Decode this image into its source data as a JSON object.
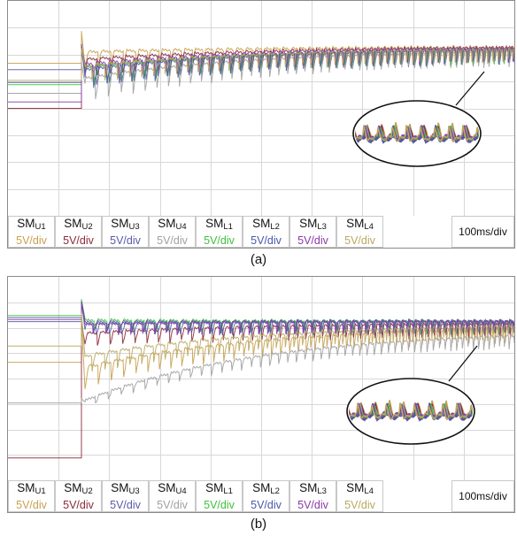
{
  "chart_data": [
    {
      "type": "line",
      "caption": "(a)",
      "timebase": "100ms/div",
      "series": [
        {
          "name": "SM_U1",
          "name_main": "SM",
          "name_sub": "U1",
          "scale": "5V/div",
          "color": "#c8a050",
          "initial_level": 0.71,
          "peak": 0.86,
          "early_level": 0.74,
          "early_swing": 0.09,
          "final_level": 0.765,
          "final_swing": 0.085
        },
        {
          "name": "SM_U2",
          "name_main": "SM",
          "name_sub": "U2",
          "scale": "5V/div",
          "color": "#8b2a3a",
          "initial_level": 0.5,
          "peak": 0.8,
          "early_level": 0.7,
          "early_swing": 0.11,
          "final_level": 0.765,
          "final_swing": 0.09
        },
        {
          "name": "SM_U3",
          "name_main": "SM",
          "name_sub": "U3",
          "scale": "5V/div",
          "color": "#5a5aa8",
          "initial_level": 0.68,
          "peak": 0.79,
          "early_level": 0.66,
          "early_swing": 0.13,
          "final_level": 0.76,
          "final_swing": 0.09
        },
        {
          "name": "SM_U4",
          "name_main": "SM",
          "name_sub": "U4",
          "scale": "5V/div",
          "color": "#a0a0a0",
          "initial_level": 0.57,
          "peak": 0.71,
          "early_level": 0.6,
          "early_swing": 0.15,
          "final_level": 0.755,
          "final_swing": 0.09
        },
        {
          "name": "SM_L1",
          "name_main": "SM",
          "name_sub": "L1",
          "scale": "5V/div",
          "color": "#40c040",
          "initial_level": 0.61,
          "peak": 0.77,
          "early_level": 0.66,
          "early_swing": 0.12,
          "final_level": 0.76,
          "final_swing": 0.09
        },
        {
          "name": "SM_L2",
          "name_main": "SM",
          "name_sub": "L2",
          "scale": "5V/div",
          "color": "#4a58a8",
          "initial_level": 0.62,
          "peak": 0.76,
          "early_level": 0.65,
          "early_swing": 0.12,
          "final_level": 0.76,
          "final_swing": 0.09
        },
        {
          "name": "SM_L3",
          "name_main": "SM",
          "name_sub": "L3",
          "scale": "5V/div",
          "color": "#8a3aa8",
          "initial_level": 0.53,
          "peak": 0.78,
          "early_level": 0.68,
          "early_swing": 0.11,
          "final_level": 0.765,
          "final_swing": 0.09
        },
        {
          "name": "SM_L4",
          "name_main": "SM",
          "name_sub": "L4",
          "scale": "5V/div",
          "color": "#b8a860",
          "initial_level": 0.63,
          "peak": 0.78,
          "early_level": 0.67,
          "early_swing": 0.11,
          "final_level": 0.76,
          "final_swing": 0.085
        }
      ]
    },
    {
      "type": "line",
      "caption": "(b)",
      "timebase": "100ms/div",
      "series": [
        {
          "name": "SM_U1",
          "name_main": "SM",
          "name_sub": "U1",
          "scale": "5V/div",
          "color": "#c8a050",
          "initial_level": 0.58,
          "peak": 0.8,
          "early_level": 0.52,
          "early_swing": 0.14,
          "final_level": 0.74,
          "final_swing": 0.09
        },
        {
          "name": "SM_U2",
          "name_main": "SM",
          "name_sub": "U2",
          "scale": "5V/div",
          "color": "#8b2a3a",
          "initial_level": 0.11,
          "peak": 0.78,
          "early_level": 0.7,
          "early_swing": 0.09,
          "final_level": 0.75,
          "final_swing": 0.09
        },
        {
          "name": "SM_U3",
          "name_main": "SM",
          "name_sub": "U3",
          "scale": "5V/div",
          "color": "#5a5aa8",
          "initial_level": 0.78,
          "peak": 0.88,
          "early_level": 0.75,
          "early_swing": 0.07,
          "final_level": 0.76,
          "final_swing": 0.09
        },
        {
          "name": "SM_U4",
          "name_main": "SM",
          "name_sub": "U4",
          "scale": "5V/div",
          "color": "#a0a0a0",
          "initial_level": 0.38,
          "peak": 0.4,
          "early_level": 0.38,
          "early_swing": 0.05,
          "final_level": 0.72,
          "final_swing": 0.09
        },
        {
          "name": "SM_L1",
          "name_main": "SM",
          "name_sub": "L1",
          "scale": "5V/div",
          "color": "#40c040",
          "initial_level": 0.81,
          "peak": 0.89,
          "early_level": 0.77,
          "early_swing": 0.07,
          "final_level": 0.76,
          "final_swing": 0.09
        },
        {
          "name": "SM_L2",
          "name_main": "SM",
          "name_sub": "L2",
          "scale": "5V/div",
          "color": "#4a58a8",
          "initial_level": 0.8,
          "peak": 0.88,
          "early_level": 0.76,
          "early_swing": 0.07,
          "final_level": 0.76,
          "final_swing": 0.09
        },
        {
          "name": "SM_L3",
          "name_main": "SM",
          "name_sub": "L3",
          "scale": "5V/div",
          "color": "#8a3aa8",
          "initial_level": 0.79,
          "peak": 0.87,
          "early_level": 0.75,
          "early_swing": 0.07,
          "final_level": 0.76,
          "final_swing": 0.09
        },
        {
          "name": "SM_L4",
          "name_main": "SM",
          "name_sub": "L4",
          "scale": "5V/div",
          "color": "#b8a860",
          "initial_level": 0.66,
          "peak": 0.82,
          "early_level": 0.58,
          "early_swing": 0.12,
          "final_level": 0.75,
          "final_swing": 0.09
        }
      ]
    }
  ]
}
